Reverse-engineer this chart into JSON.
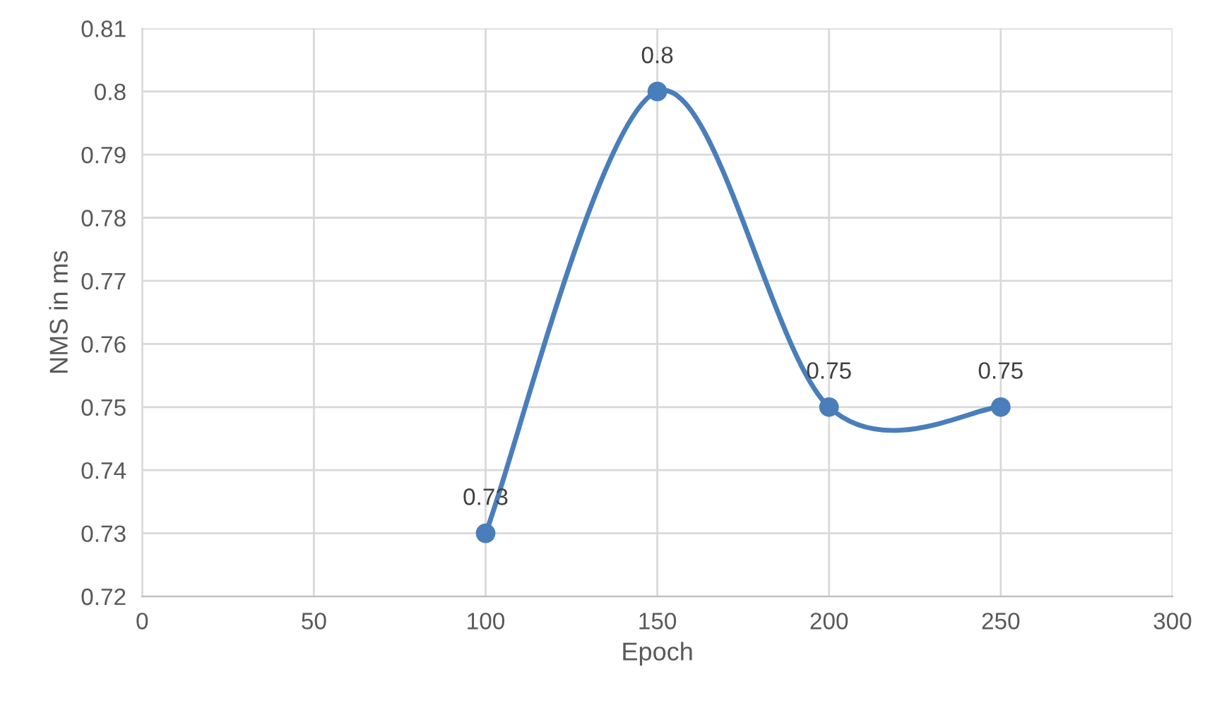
{
  "chart_data": {
    "type": "line",
    "xlabel": "Epoch",
    "ylabel": "NMS in ms",
    "x": [
      100,
      150,
      200,
      250
    ],
    "series": [
      {
        "color": "#4a7ebb",
        "values": [
          0.73,
          0.8,
          0.75,
          0.75
        ]
      }
    ],
    "xlim": [
      0,
      300
    ],
    "xticks": [
      0,
      50,
      100,
      150,
      200,
      250,
      300
    ],
    "ylim": [
      0.72,
      0.81
    ],
    "yticks": [
      0.72,
      0.73,
      0.74,
      0.75,
      0.76,
      0.77,
      0.78,
      0.79,
      0.8,
      0.81
    ],
    "grid": true,
    "marker": "circle",
    "line_style": "solid",
    "data_labels": true
  }
}
